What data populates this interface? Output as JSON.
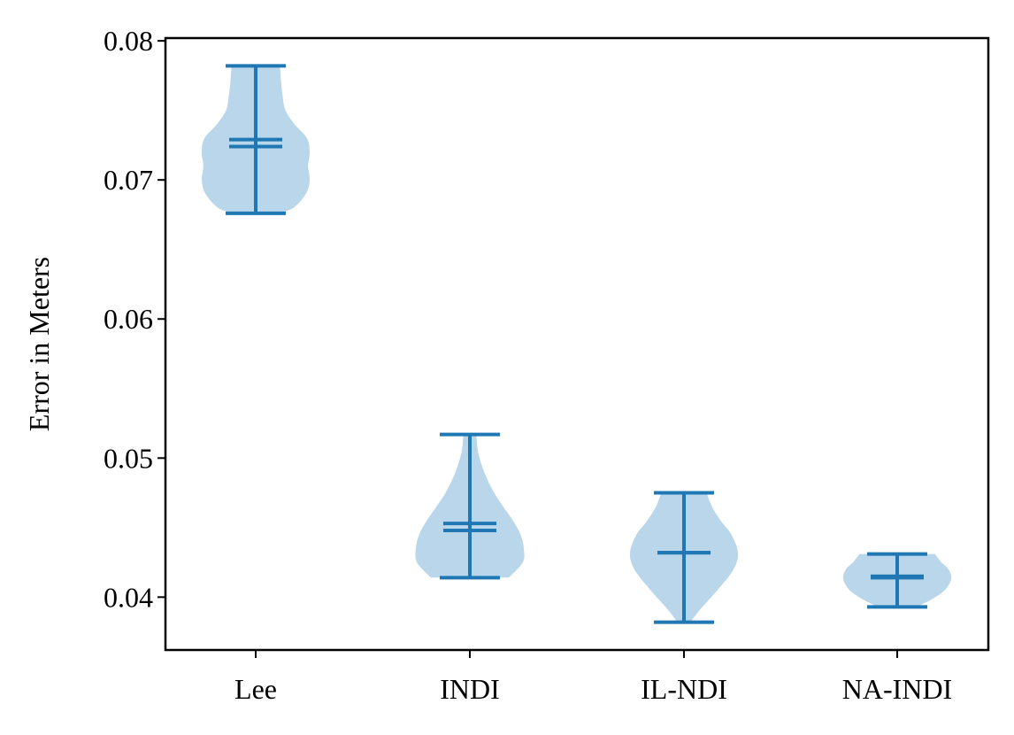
{
  "chart_data": {
    "type": "violin",
    "title": "",
    "xlabel": "",
    "ylabel": "Error in Meters",
    "ylim": [
      0.0362,
      0.0802
    ],
    "yticks": [
      0.04,
      0.05,
      0.06,
      0.07,
      0.08
    ],
    "ytick_labels": [
      "0.04",
      "0.05",
      "0.06",
      "0.07",
      "0.08"
    ],
    "categories": [
      "Lee",
      "INDI",
      "IL-NDI",
      "NA-INDI"
    ],
    "grid": false,
    "colors": {
      "body": "#bad6ea",
      "line": "#1f77b4",
      "axis": "#000000"
    },
    "series": [
      {
        "category": "Lee",
        "min": 0.0676,
        "max": 0.0782,
        "mean": 0.0729,
        "median": 0.0724,
        "profile": [
          [
            0.0676,
            0.42
          ],
          [
            0.068,
            0.7
          ],
          [
            0.069,
            0.93
          ],
          [
            0.07,
            1.0
          ],
          [
            0.071,
            0.97
          ],
          [
            0.072,
            1.0
          ],
          [
            0.073,
            0.95
          ],
          [
            0.074,
            0.72
          ],
          [
            0.075,
            0.55
          ],
          [
            0.076,
            0.5
          ],
          [
            0.077,
            0.47
          ],
          [
            0.0782,
            0.45
          ]
        ]
      },
      {
        "category": "INDI",
        "min": 0.0414,
        "max": 0.0517,
        "mean": 0.0453,
        "median": 0.0448,
        "profile": [
          [
            0.0414,
            0.72
          ],
          [
            0.0425,
            0.98
          ],
          [
            0.0435,
            1.0
          ],
          [
            0.0445,
            0.94
          ],
          [
            0.0455,
            0.8
          ],
          [
            0.0465,
            0.62
          ],
          [
            0.0475,
            0.45
          ],
          [
            0.0485,
            0.32
          ],
          [
            0.0495,
            0.22
          ],
          [
            0.0505,
            0.15
          ],
          [
            0.0517,
            0.12
          ]
        ]
      },
      {
        "category": "IL-NDI",
        "min": 0.0382,
        "max": 0.0475,
        "mean": 0.0432,
        "median": 0.0432,
        "profile": [
          [
            0.0382,
            0.12
          ],
          [
            0.0392,
            0.32
          ],
          [
            0.0405,
            0.62
          ],
          [
            0.042,
            0.92
          ],
          [
            0.0432,
            1.0
          ],
          [
            0.0445,
            0.88
          ],
          [
            0.0455,
            0.68
          ],
          [
            0.0465,
            0.52
          ],
          [
            0.0475,
            0.42
          ]
        ]
      },
      {
        "category": "NA-INDI",
        "min": 0.0393,
        "max": 0.0431,
        "mean": 0.0415,
        "median": 0.0414,
        "profile": [
          [
            0.0393,
            0.35
          ],
          [
            0.0398,
            0.62
          ],
          [
            0.0405,
            0.88
          ],
          [
            0.0413,
            1.0
          ],
          [
            0.042,
            0.95
          ],
          [
            0.0425,
            0.82
          ],
          [
            0.0431,
            0.7
          ]
        ]
      }
    ]
  }
}
